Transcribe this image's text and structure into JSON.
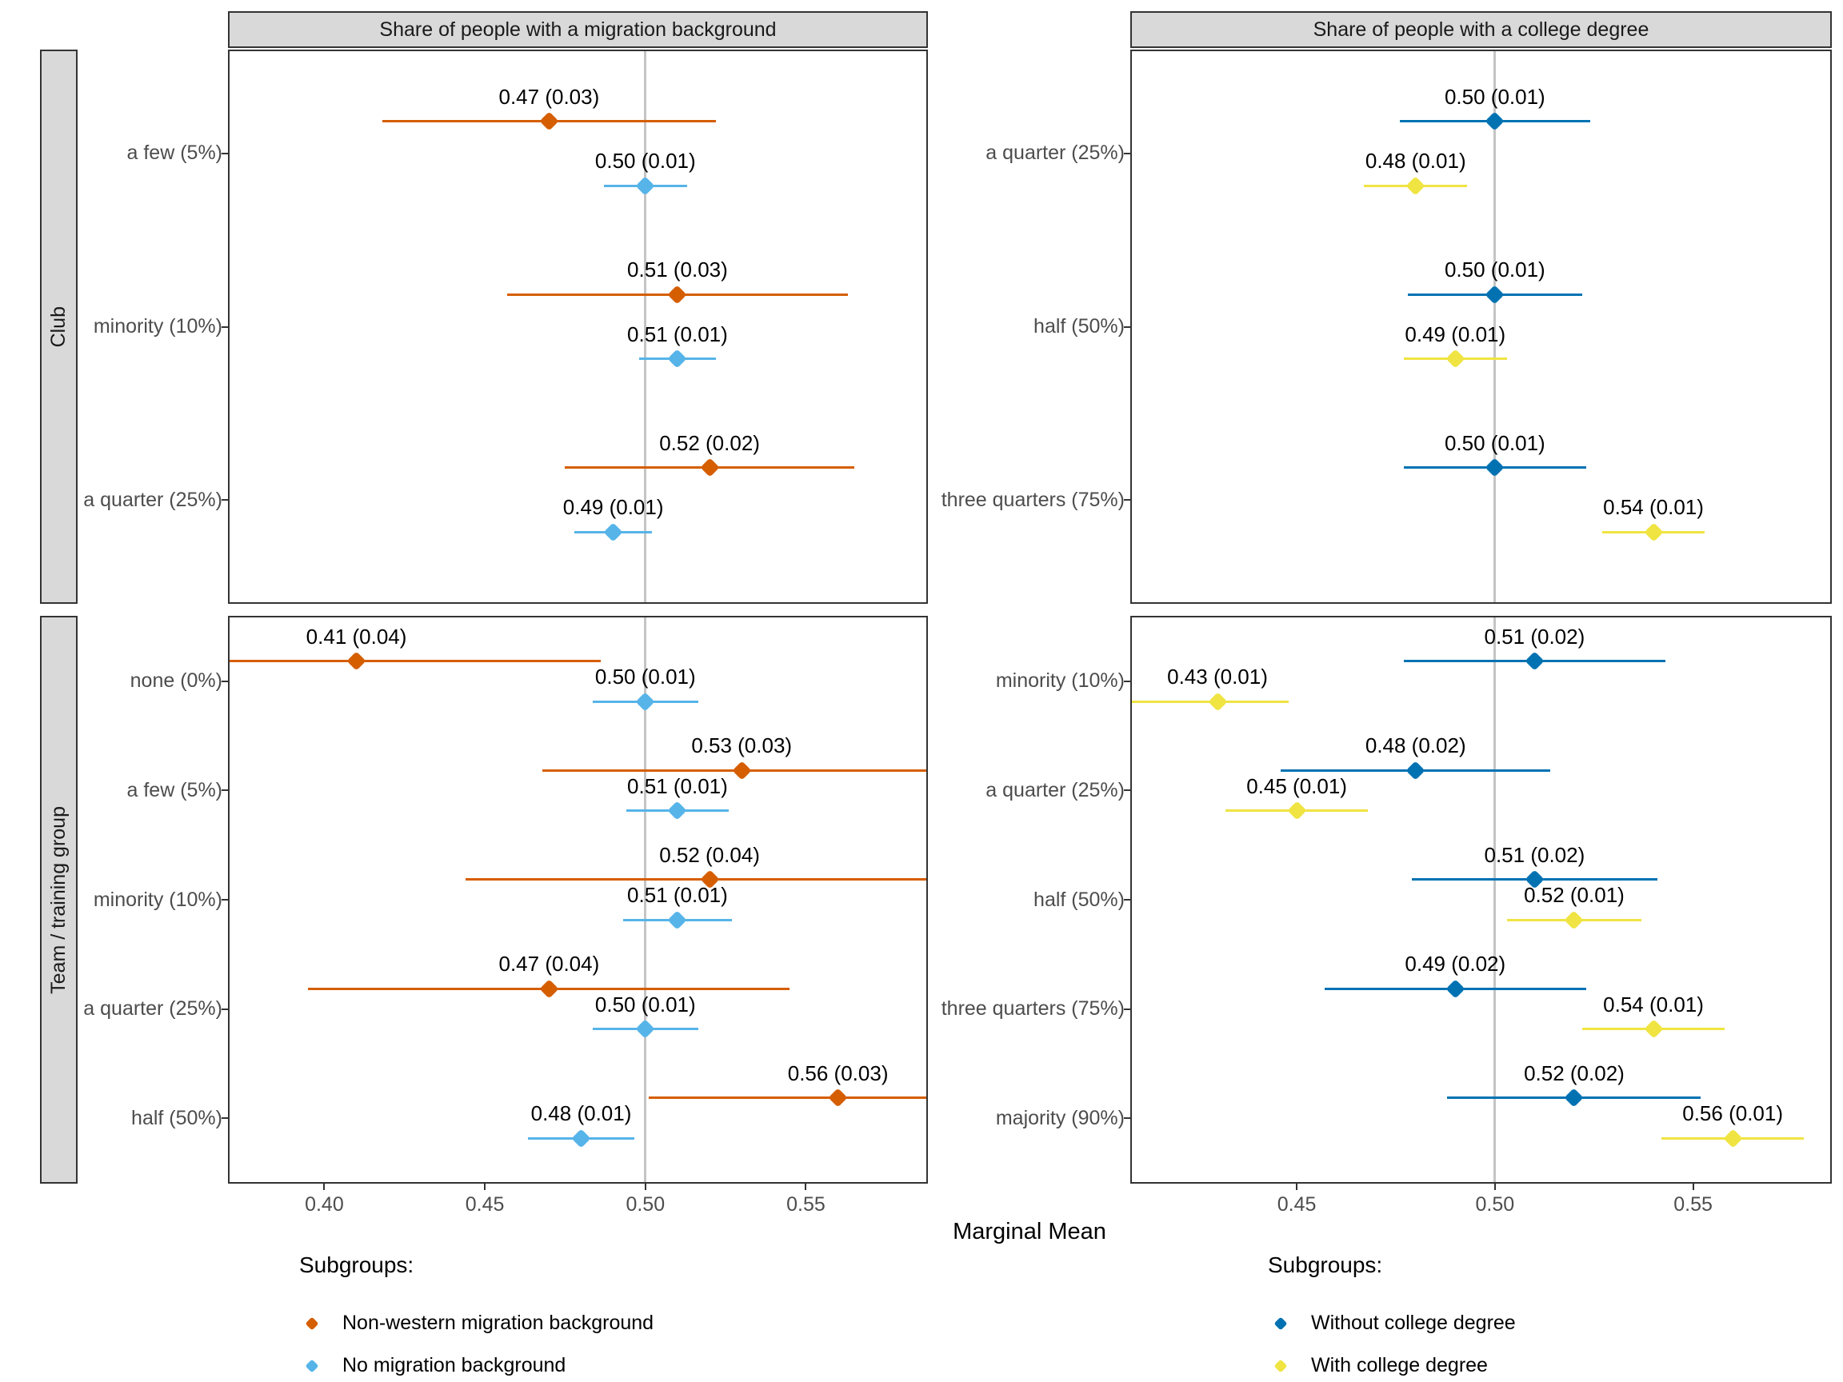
{
  "figure": {
    "x_axis_title": "Marginal Mean",
    "legend_left": {
      "title": "Subgroups:",
      "items": [
        {
          "label": "Non-western migration background",
          "color": "#D55E00"
        },
        {
          "label": "No migration background",
          "color": "#56B4E9"
        }
      ]
    },
    "legend_right": {
      "title": "Subgroups:",
      "items": [
        {
          "label": "Without college degree",
          "color": "#0072B2"
        },
        {
          "label": "With college degree",
          "color": "#F0E442"
        }
      ]
    }
  },
  "chart_data": {
    "type": "scatter",
    "subtype": "dot-whisker marginal means with confidence intervals",
    "facet_col_titles": [
      "Share of people with a migration background",
      "Share of people with a college degree"
    ],
    "facet_row_titles": [
      "Club",
      "Team / training group"
    ],
    "xlabel": "Marginal Mean",
    "reference_line": 0.5,
    "grid": "off",
    "series_colors": {
      "Non-western migration background": "#D55E00",
      "No migration background": "#56B4E9",
      "Without college degree": "#0072B2",
      "With college degree": "#F0E442"
    },
    "columns": [
      {
        "x_domain": [
          0.37,
          0.588
        ],
        "x_ticks": [
          0.4,
          0.45,
          0.5,
          0.55
        ],
        "x_tick_labels": [
          "0.40",
          "0.45",
          "0.50",
          "0.55"
        ]
      },
      {
        "x_domain": [
          0.408,
          0.585
        ],
        "x_ticks": [
          0.45,
          0.5,
          0.55
        ],
        "x_tick_labels": [
          "0.45",
          "0.50",
          "0.55"
        ]
      }
    ],
    "panels": [
      {
        "id": "club-migration",
        "row": 0,
        "col": 0,
        "col_title": "Share of people with a migration background",
        "row_title": "Club",
        "categories": [
          {
            "label": "a few (5%)",
            "points": [
              {
                "series": "Non-western migration background",
                "mean": 0.47,
                "se": 0.03,
                "label": "0.47 (0.03)",
                "ci": [
                  0.418,
                  0.522
                ]
              },
              {
                "series": "No migration background",
                "mean": 0.5,
                "se": 0.01,
                "label": "0.50 (0.01)",
                "ci": [
                  0.487,
                  0.513
                ]
              }
            ]
          },
          {
            "label": "minority (10%)",
            "points": [
              {
                "series": "Non-western migration background",
                "mean": 0.51,
                "se": 0.03,
                "label": "0.51 (0.03)",
                "ci": [
                  0.457,
                  0.563
                ]
              },
              {
                "series": "No migration background",
                "mean": 0.51,
                "se": 0.01,
                "label": "0.51 (0.01)",
                "ci": [
                  0.498,
                  0.522
                ]
              }
            ]
          },
          {
            "label": "a quarter (25%)",
            "points": [
              {
                "series": "Non-western migration background",
                "mean": 0.52,
                "se": 0.02,
                "label": "0.52 (0.02)",
                "ci": [
                  0.475,
                  0.565
                ]
              },
              {
                "series": "No migration background",
                "mean": 0.49,
                "se": 0.01,
                "label": "0.49 (0.01)",
                "ci": [
                  0.478,
                  0.502
                ]
              }
            ]
          }
        ]
      },
      {
        "id": "club-college",
        "row": 0,
        "col": 1,
        "col_title": "Share of people with a college degree",
        "row_title": "Club",
        "categories": [
          {
            "label": "a quarter (25%)",
            "points": [
              {
                "series": "Without college degree",
                "mean": 0.5,
                "se": 0.01,
                "label": "0.50 (0.01)",
                "ci": [
                  0.476,
                  0.524
                ]
              },
              {
                "series": "With college degree",
                "mean": 0.48,
                "se": 0.01,
                "label": "0.48 (0.01)",
                "ci": [
                  0.467,
                  0.493
                ]
              }
            ]
          },
          {
            "label": "half (50%)",
            "points": [
              {
                "series": "Without college degree",
                "mean": 0.5,
                "se": 0.01,
                "label": "0.50 (0.01)",
                "ci": [
                  0.478,
                  0.522
                ]
              },
              {
                "series": "With college degree",
                "mean": 0.49,
                "se": 0.01,
                "label": "0.49 (0.01)",
                "ci": [
                  0.477,
                  0.503
                ]
              }
            ]
          },
          {
            "label": "three quarters (75%)",
            "points": [
              {
                "series": "Without college degree",
                "mean": 0.5,
                "se": 0.01,
                "label": "0.50 (0.01)",
                "ci": [
                  0.477,
                  0.523
                ]
              },
              {
                "series": "With college degree",
                "mean": 0.54,
                "se": 0.01,
                "label": "0.54 (0.01)",
                "ci": [
                  0.527,
                  0.553
                ]
              }
            ]
          }
        ]
      },
      {
        "id": "team-migration",
        "row": 1,
        "col": 0,
        "col_title": "Share of people with a migration background",
        "row_title": "Team / training group",
        "categories": [
          {
            "label": "none (0%)",
            "points": [
              {
                "series": "Non-western migration background",
                "mean": 0.41,
                "se": 0.04,
                "label": "0.41 (0.04)",
                "ci": [
                  0.334,
                  0.486
                ]
              },
              {
                "series": "No migration background",
                "mean": 0.5,
                "se": 0.01,
                "label": "0.50 (0.01)",
                "ci": [
                  0.4835,
                  0.5165
                ]
              }
            ]
          },
          {
            "label": "a few (5%)",
            "points": [
              {
                "series": "Non-western migration background",
                "mean": 0.53,
                "se": 0.03,
                "label": "0.53 (0.03)",
                "ci": [
                  0.468,
                  0.592
                ]
              },
              {
                "series": "No migration background",
                "mean": 0.51,
                "se": 0.01,
                "label": "0.51 (0.01)",
                "ci": [
                  0.494,
                  0.526
                ]
              }
            ]
          },
          {
            "label": "minority (10%)",
            "points": [
              {
                "series": "Non-western migration background",
                "mean": 0.52,
                "se": 0.04,
                "label": "0.52 (0.04)",
                "ci": [
                  0.444,
                  0.596
                ]
              },
              {
                "series": "No migration background",
                "mean": 0.51,
                "se": 0.01,
                "label": "0.51 (0.01)",
                "ci": [
                  0.493,
                  0.527
                ]
              }
            ]
          },
          {
            "label": "a quarter (25%)",
            "points": [
              {
                "series": "Non-western migration background",
                "mean": 0.47,
                "se": 0.04,
                "label": "0.47 (0.04)",
                "ci": [
                  0.395,
                  0.545
                ]
              },
              {
                "series": "No migration background",
                "mean": 0.5,
                "se": 0.01,
                "label": "0.50 (0.01)",
                "ci": [
                  0.4835,
                  0.5165
                ]
              }
            ]
          },
          {
            "label": "half (50%)",
            "points": [
              {
                "series": "Non-western migration background",
                "mean": 0.56,
                "se": 0.03,
                "label": "0.56 (0.03)",
                "ci": [
                  0.501,
                  0.619
                ]
              },
              {
                "series": "No migration background",
                "mean": 0.48,
                "se": 0.01,
                "label": "0.48 (0.01)",
                "ci": [
                  0.4635,
                  0.4965
                ]
              }
            ]
          }
        ]
      },
      {
        "id": "team-college",
        "row": 1,
        "col": 1,
        "col_title": "Share of people with a college degree",
        "row_title": "Team / training group",
        "categories": [
          {
            "label": "minority (10%)",
            "points": [
              {
                "series": "Without college degree",
                "mean": 0.51,
                "se": 0.02,
                "label": "0.51 (0.02)",
                "ci": [
                  0.477,
                  0.543
                ]
              },
              {
                "series": "With college degree",
                "mean": 0.43,
                "se": 0.01,
                "label": "0.43 (0.01)",
                "ci": [
                  0.405,
                  0.448
                ]
              }
            ]
          },
          {
            "label": "a quarter (25%)",
            "points": [
              {
                "series": "Without college degree",
                "mean": 0.48,
                "se": 0.02,
                "label": "0.48 (0.02)",
                "ci": [
                  0.446,
                  0.514
                ]
              },
              {
                "series": "With college degree",
                "mean": 0.45,
                "se": 0.01,
                "label": "0.45 (0.01)",
                "ci": [
                  0.432,
                  0.468
                ]
              }
            ]
          },
          {
            "label": "half (50%)",
            "points": [
              {
                "series": "Without college degree",
                "mean": 0.51,
                "se": 0.02,
                "label": "0.51 (0.02)",
                "ci": [
                  0.479,
                  0.541
                ]
              },
              {
                "series": "With college degree",
                "mean": 0.52,
                "se": 0.01,
                "label": "0.52 (0.01)",
                "ci": [
                  0.503,
                  0.537
                ]
              }
            ]
          },
          {
            "label": "three quarters (75%)",
            "points": [
              {
                "series": "Without college degree",
                "mean": 0.49,
                "se": 0.02,
                "label": "0.49 (0.02)",
                "ci": [
                  0.457,
                  0.523
                ]
              },
              {
                "series": "With college degree",
                "mean": 0.54,
                "se": 0.01,
                "label": "0.54 (0.01)",
                "ci": [
                  0.522,
                  0.558
                ]
              }
            ]
          },
          {
            "label": "majority (90%)",
            "points": [
              {
                "series": "Without college degree",
                "mean": 0.52,
                "se": 0.02,
                "label": "0.52 (0.02)",
                "ci": [
                  0.488,
                  0.552
                ]
              },
              {
                "series": "With college degree",
                "mean": 0.56,
                "se": 0.01,
                "label": "0.56 (0.01)",
                "ci": [
                  0.542,
                  0.578
                ]
              }
            ]
          }
        ]
      }
    ]
  }
}
